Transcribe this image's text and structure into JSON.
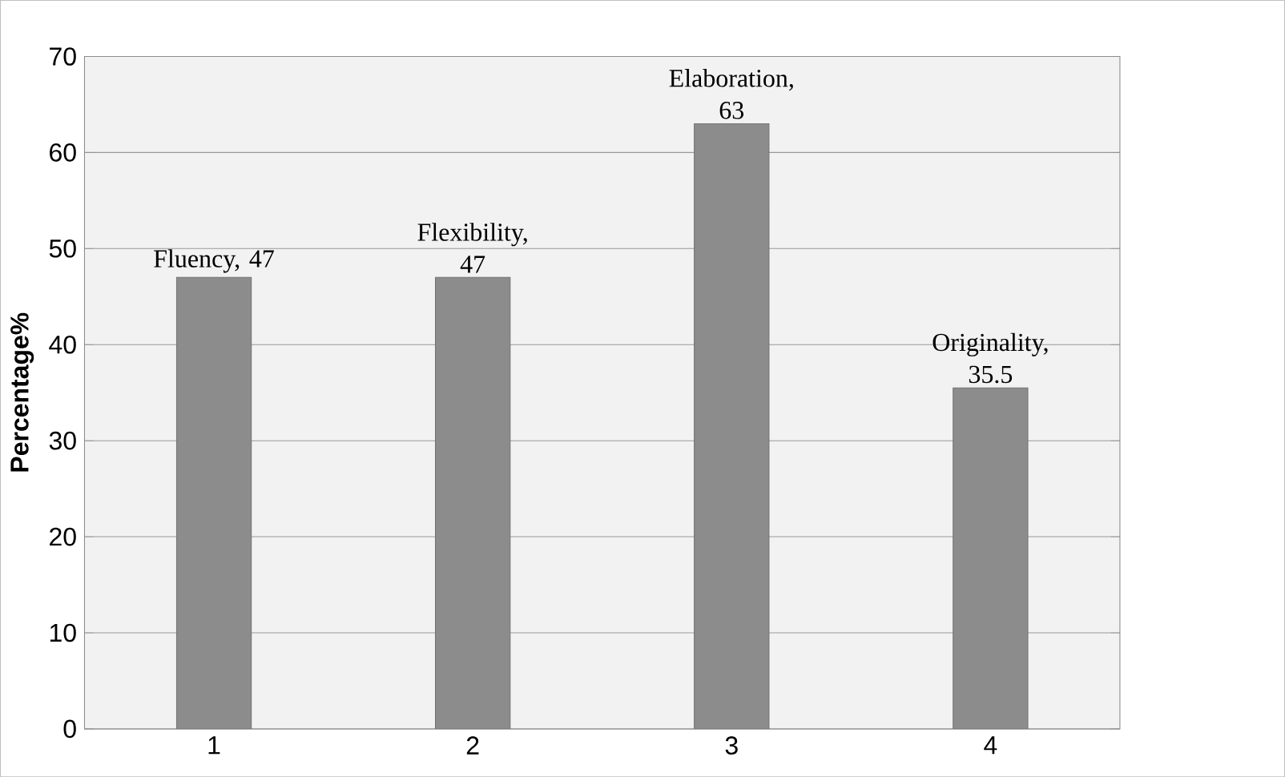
{
  "chart_data": {
    "type": "bar",
    "ylabel": "Percentage%",
    "categories": [
      "1",
      "2",
      "3",
      "4"
    ],
    "values": [
      47,
      47,
      63,
      35.5
    ],
    "value_labels": [
      "Fluency, 47",
      "Flexibility, 47",
      "Elaboration, 63",
      "Originality, 35.5"
    ],
    "color": "#8c8c8c",
    "ylim": [
      0,
      70
    ],
    "yticks": [
      0,
      10,
      20,
      30,
      40,
      50,
      60,
      70
    ],
    "grid": "y"
  }
}
